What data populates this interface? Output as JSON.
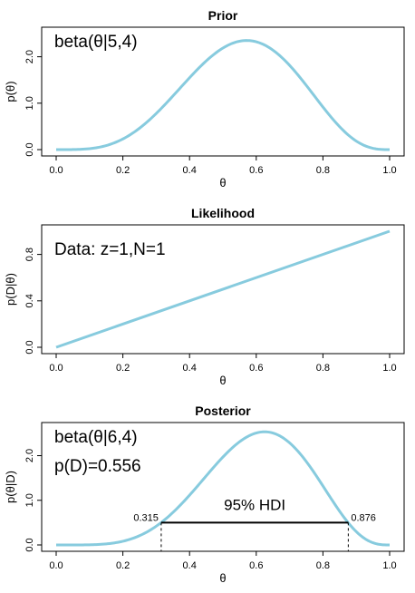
{
  "chart_data": [
    {
      "type": "line",
      "title": "Prior",
      "xlabel": "θ",
      "ylabel": "p(θ)",
      "xlim": [
        0,
        1
      ],
      "ylim": [
        0,
        2.5
      ],
      "xticks": [
        "0.0",
        "0.2",
        "0.4",
        "0.6",
        "0.8",
        "1.0"
      ],
      "yticks": [
        "0.0",
        "1.0",
        "2.0"
      ],
      "annotations": [
        "beta(θ|5,4)"
      ],
      "series": [
        {
          "color": "#87cbde",
          "x": [
            0,
            0.1,
            0.2,
            0.3,
            0.4,
            0.5,
            0.55,
            0.6,
            0.65,
            0.7,
            0.8,
            0.9,
            1.0
          ],
          "y": [
            0,
            0.02,
            0.23,
            0.79,
            1.59,
            2.19,
            2.31,
            2.32,
            2.17,
            1.86,
            1.05,
            0.21,
            0
          ]
        }
      ]
    },
    {
      "type": "line",
      "title": "Likelihood",
      "xlabel": "θ",
      "ylabel": "p(D|θ)",
      "xlim": [
        0,
        1
      ],
      "ylim": [
        0,
        1.0
      ],
      "xticks": [
        "0.0",
        "0.2",
        "0.4",
        "0.6",
        "0.8",
        "1.0"
      ],
      "yticks": [
        "0.0",
        "0.4",
        "0.8"
      ],
      "annotations": [
        "Data: z=1,N=1"
      ],
      "series": [
        {
          "color": "#87cbde",
          "x": [
            0,
            1.0
          ],
          "y": [
            0,
            1.0
          ]
        }
      ]
    },
    {
      "type": "line",
      "title": "Posterior",
      "xlabel": "θ",
      "ylabel": "p(θ|D)",
      "xlim": [
        0,
        1
      ],
      "ylim": [
        0,
        2.6
      ],
      "xticks": [
        "0.0",
        "0.2",
        "0.4",
        "0.6",
        "0.8",
        "1.0"
      ],
      "yticks": [
        "0.0",
        "1.0",
        "2.0"
      ],
      "annotations": [
        "beta(θ|6,4)",
        "p(D)=0.556"
      ],
      "hdi": {
        "label": "95% HDI",
        "low": 0.315,
        "high": 0.876,
        "low_label": "0.315",
        "high_label": "0.876",
        "height": 0.5
      },
      "series": [
        {
          "color": "#87cbde",
          "x": [
            0,
            0.1,
            0.2,
            0.3,
            0.4,
            0.5,
            0.6,
            0.625,
            0.65,
            0.7,
            0.8,
            0.9,
            1.0
          ],
          "y": [
            0,
            0.0,
            0.09,
            0.43,
            1.14,
            1.97,
            2.51,
            2.55,
            2.53,
            2.34,
            1.51,
            0.34,
            0
          ]
        }
      ]
    }
  ]
}
